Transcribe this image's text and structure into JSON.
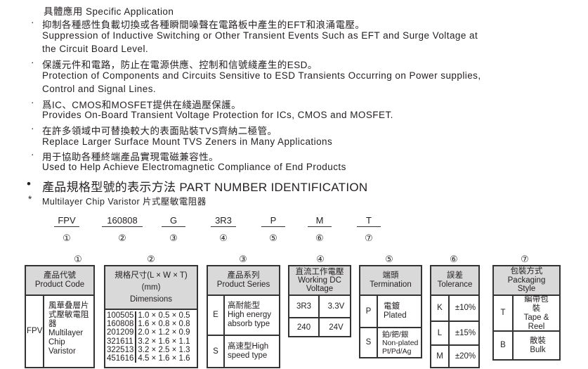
{
  "application": {
    "heading": "具體應用 Specific Application",
    "items": [
      {
        "zh": "抑制各種感性負載切換或各種瞬間噪聲在電路板中產生的EFT和浪涌電壓。",
        "en": [
          "Suppression of Inductive Switching or Other Transient Events Such as EFT and Surge Voltage at",
          "the Circuit Board Level."
        ]
      },
      {
        "zh": "保護元件和電路，防止在電源供應、控制和信號綫產生的ESD。",
        "en": [
          "Protection of Components and Circuits Sensitive to ESD Transients Occurring on Power supplies,",
          "Control and Signal Lines."
        ]
      },
      {
        "zh": "爲IC、CMOS和MOSFET提供在綫過壓保護。",
        "en": [
          "Provides On-Board Transient Voltage Protection for ICs, CMOS and MOSFET."
        ]
      },
      {
        "zh": "在許多領域中可替換較大的表面貼裝TVS齊納二極管。",
        "en": [
          "Replace Larger Surface Mount TVS Zeners in Many Applications"
        ]
      },
      {
        "zh": "用于協助各種終端產品實現電磁兼容性。",
        "en": [
          "Used to Help Achieve Electromagnetic Compliance of End Products"
        ]
      }
    ]
  },
  "pni": {
    "title": "產品規格型號的表示方法 PART NUMBER IDENTIFICATION",
    "subtitle": "Multilayer Chip Varistor 片式壓敏電阻器",
    "parts": [
      "FPV",
      "160808",
      "G",
      "3R3",
      "P",
      "M",
      "T"
    ],
    "circles": [
      "①",
      "②",
      "③",
      "④",
      "⑤",
      "⑥",
      "⑦"
    ]
  },
  "tables": {
    "t1": {
      "zh": "產品代號",
      "en": "Product Code",
      "code": "FPV",
      "desc_zh": "風華叠層片式壓敏電阻器",
      "desc_en": [
        "Multilayer",
        "Chip",
        "Varistor"
      ]
    },
    "t2": {
      "zh": "規格尺寸(L × W × T)",
      "unit": "(mm)",
      "en": "Dimensions",
      "codes": [
        "100505",
        "160808",
        "201209",
        "321611",
        "322513",
        "451616"
      ],
      "dims": [
        "1.0 × 0.5 × 0.5",
        "1.6 × 0.8 × 0.8",
        "2.0 × 1.2 × 0.9",
        "3.2 × 1.6 × 1.1",
        "3.2 × 2.5 × 1.3",
        "4.5 × 1.6 × 1.6"
      ]
    },
    "t3": {
      "zh": "產品系列",
      "en": "Product Series",
      "rows": [
        {
          "k": "E",
          "zh": "高耐能型",
          "en": "High energy absorb type"
        },
        {
          "k": "S",
          "zh": "高速型High",
          "en": "speed type"
        }
      ]
    },
    "t4": {
      "zh": "直流工作電壓",
      "en": "Working DC Voltage",
      "rows": [
        {
          "k": "3R3",
          "v": "3.3V"
        },
        {
          "k": "240",
          "v": "24V"
        }
      ]
    },
    "t5": {
      "zh": "端頭",
      "en": "Termination",
      "rows": [
        {
          "k": "P",
          "zh": "電鍍",
          "en": "Plated"
        },
        {
          "k": "S",
          "zh": "鉑/鈀/銀",
          "en": "Non-plated Pt/Pd/Ag"
        }
      ]
    },
    "t6": {
      "zh": "誤差",
      "en": "Tolerance",
      "rows": [
        {
          "k": "K",
          "v": "±10%"
        },
        {
          "k": "L",
          "v": "±15%"
        },
        {
          "k": "M",
          "v": "±20%"
        }
      ]
    },
    "t7": {
      "zh": "包裝方式",
      "en": "Packaging Style",
      "rows": [
        {
          "k": "T",
          "zh": "編帶包裝",
          "en": "Tape & Reel"
        },
        {
          "k": "B",
          "zh": "散裝",
          "en": "Bulk"
        }
      ]
    }
  }
}
